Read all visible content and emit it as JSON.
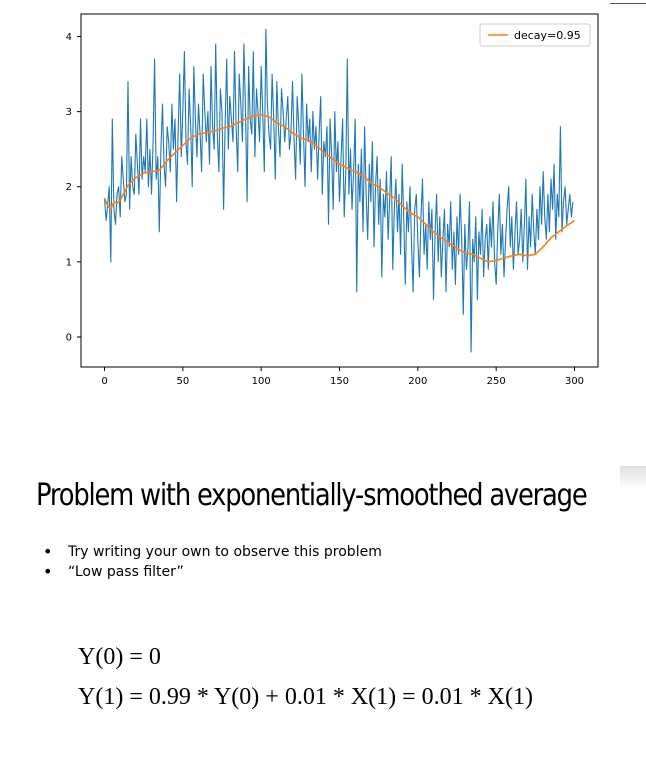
{
  "chart_data": {
    "type": "line",
    "title": "",
    "xlabel": "",
    "ylabel": "",
    "xlim": [
      -15,
      315
    ],
    "ylim": [
      -0.4,
      4.3
    ],
    "xticks": [
      0,
      50,
      100,
      150,
      200,
      250,
      300
    ],
    "yticks": [
      0,
      1,
      2,
      3,
      4
    ],
    "grid": false,
    "legend_position": "top-right",
    "series": [
      {
        "name": "",
        "role": "raw",
        "color": "#1f77b4",
        "x_start": 0,
        "x_step": 1,
        "values": [
          1.85,
          1.55,
          1.75,
          2.0,
          1.0,
          2.9,
          1.7,
          1.5,
          1.9,
          2.0,
          1.6,
          2.4,
          2.1,
          1.8,
          1.9,
          3.4,
          1.7,
          2.4,
          2.0,
          1.9,
          2.7,
          2.3,
          1.9,
          2.9,
          2.1,
          2.4,
          2.2,
          2.9,
          2.0,
          2.5,
          1.9,
          2.6,
          3.7,
          2.1,
          2.4,
          1.4,
          2.5,
          3.1,
          2.3,
          2.0,
          2.8,
          2.6,
          2.2,
          3.1,
          2.5,
          2.9,
          1.8,
          2.7,
          3.5,
          2.4,
          3.0,
          3.8,
          2.6,
          2.3,
          3.3,
          2.8,
          2.0,
          3.6,
          2.9,
          2.4,
          3.1,
          2.7,
          2.2,
          3.5,
          3.0,
          2.6,
          3.0,
          2.3,
          3.6,
          2.8,
          2.5,
          3.9,
          2.7,
          2.2,
          3.3,
          3.0,
          1.7,
          2.8,
          3.7,
          2.5,
          3.2,
          2.9,
          2.6,
          3.8,
          2.8,
          2.2,
          3.5,
          3.1,
          2.6,
          3.9,
          3.0,
          1.8,
          3.6,
          2.9,
          2.7,
          3.8,
          2.4,
          3.3,
          3.0,
          2.6,
          3.6,
          3.0,
          2.2,
          4.1,
          3.1,
          2.7,
          2.5,
          3.5,
          2.9,
          2.1,
          3.4,
          2.8,
          2.4,
          3.3,
          3.0,
          2.6,
          2.9,
          3.2,
          2.5,
          2.7,
          3.4,
          2.6,
          2.1,
          3.2,
          2.8,
          2.3,
          3.5,
          2.7,
          2.0,
          3.1,
          2.6,
          2.9,
          2.2,
          3.0,
          2.5,
          2.8,
          2.1,
          2.7,
          3.2,
          1.9,
          2.6,
          2.4,
          2.8,
          1.5,
          2.9,
          2.4,
          1.7,
          3.0,
          2.2,
          2.6,
          1.8,
          2.4,
          2.9,
          1.6,
          2.2,
          3.7,
          1.9,
          2.5,
          1.7,
          2.2,
          2.9,
          0.6,
          2.3,
          1.8,
          2.5,
          1.4,
          2.8,
          1.9,
          1.3,
          2.3,
          1.8,
          2.6,
          1.2,
          2.0,
          2.4,
          1.5,
          2.1,
          0.8,
          1.9,
          1.6,
          2.2,
          1.3,
          1.8,
          2.4,
          0.9,
          1.7,
          2.1,
          1.4,
          1.9,
          1.1,
          2.3,
          1.6,
          0.7,
          1.8,
          1.4,
          2.0,
          1.2,
          0.6,
          1.7,
          1.9,
          1.3,
          0.8,
          1.6,
          2.1,
          1.1,
          1.5,
          0.9,
          1.8,
          1.3,
          1.7,
          0.5,
          1.4,
          1.9,
          1.0,
          1.6,
          0.8,
          1.3,
          1.7,
          0.6,
          1.5,
          1.2,
          1.8,
          0.9,
          1.4,
          0.7,
          1.6,
          1.1,
          1.9,
          1.3,
          0.3,
          1.5,
          0.9,
          1.2,
          1.8,
          -0.2,
          1.3,
          1.0,
          1.6,
          0.5,
          1.4,
          1.1,
          1.7,
          0.8,
          1.3,
          1.5,
          0.9,
          1.6,
          1.2,
          1.8,
          1.0,
          0.7,
          1.4,
          1.9,
          1.1,
          1.5,
          0.8,
          1.3,
          1.7,
          2.0,
          1.2,
          1.6,
          0.9,
          1.4,
          1.8,
          1.1,
          1.3,
          1.7,
          1.0,
          1.5,
          2.1,
          0.9,
          1.6,
          1.2,
          1.9,
          1.4,
          1.1,
          1.7,
          1.3,
          2.0,
          1.5,
          2.2,
          1.6,
          1.3,
          1.9,
          1.4,
          2.1,
          1.7,
          2.3,
          1.3,
          1.9,
          1.6,
          2.8,
          1.4,
          1.8,
          2.0,
          1.5,
          1.7,
          1.9,
          1.6,
          1.8
        ]
      },
      {
        "name": "decay=0.95",
        "role": "smoothed",
        "color": "#ff7f0e",
        "x": [
          0,
          2,
          4,
          6,
          8,
          10,
          15,
          20,
          25,
          30,
          35,
          40,
          45,
          50,
          55,
          60,
          65,
          70,
          75,
          80,
          85,
          90,
          95,
          100,
          105,
          110,
          115,
          120,
          125,
          130,
          135,
          140,
          145,
          150,
          155,
          160,
          165,
          170,
          175,
          180,
          185,
          190,
          195,
          200,
          205,
          210,
          215,
          220,
          225,
          230,
          235,
          240,
          245,
          250,
          255,
          260,
          265,
          270,
          275,
          280,
          285,
          290,
          295,
          300
        ],
        "values": [
          1.85,
          1.75,
          1.7,
          1.8,
          1.78,
          1.82,
          2.02,
          2.12,
          2.18,
          2.2,
          2.22,
          2.35,
          2.45,
          2.55,
          2.65,
          2.7,
          2.72,
          2.74,
          2.78,
          2.8,
          2.85,
          2.9,
          2.94,
          2.96,
          2.93,
          2.85,
          2.8,
          2.72,
          2.65,
          2.62,
          2.55,
          2.46,
          2.38,
          2.3,
          2.25,
          2.2,
          2.15,
          2.05,
          2.0,
          1.92,
          1.85,
          1.75,
          1.65,
          1.6,
          1.5,
          1.4,
          1.32,
          1.25,
          1.18,
          1.12,
          1.1,
          1.05,
          1.0,
          1.02,
          1.05,
          1.08,
          1.1,
          1.08,
          1.1,
          1.2,
          1.32,
          1.4,
          1.48,
          1.55
        ]
      }
    ]
  },
  "slide": {
    "title": "Problem with exponentially-smoothed average",
    "bullets": [
      "Try writing your own to observe this problem",
      "“Low pass filter”"
    ]
  },
  "formulas": {
    "line1": "Y(0) = 0",
    "line2": "Y(1) = 0.99 * Y(0) + 0.01 * X(1) = 0.01 * X(1)"
  }
}
